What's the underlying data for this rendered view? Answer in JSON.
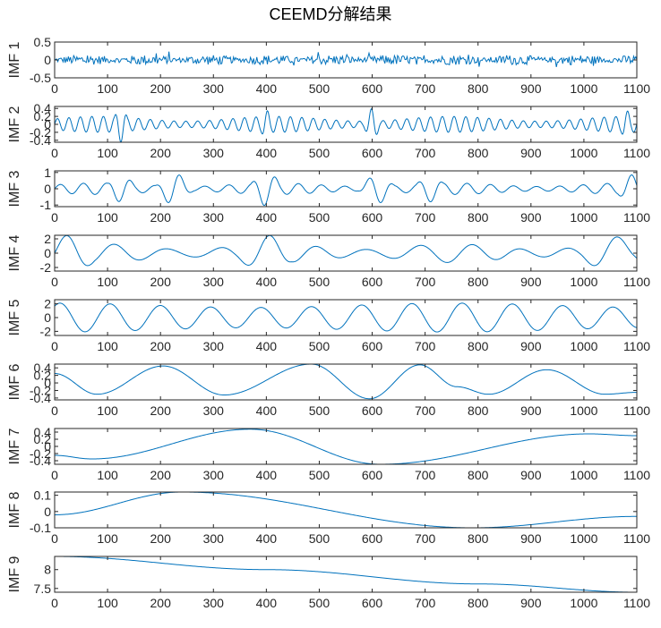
{
  "title": "CEEMD分解结果",
  "colors": {
    "line": "#0072BD",
    "axes": "#262626"
  },
  "chart_data": [
    {
      "type": "line",
      "ylabel": "IMF 1",
      "xlim": [
        0,
        1100
      ],
      "ylim": [
        -0.5,
        0.5
      ],
      "xticks": [
        "0",
        "100",
        "200",
        "300",
        "400",
        "500",
        "600",
        "700",
        "800",
        "900",
        "1000",
        "1100"
      ],
      "yticks": [
        {
          "v": 0.5,
          "label": "0.5"
        },
        {
          "v": 0,
          "label": "0"
        },
        {
          "v": -0.5,
          "label": "-0.5"
        }
      ],
      "series": [
        {
          "kind": "noise",
          "amplitude": 0.1,
          "sample_every": 2
        }
      ]
    },
    {
      "type": "line",
      "ylabel": "IMF 2",
      "xlim": [
        0,
        1100
      ],
      "ylim": [
        -0.45,
        0.45
      ],
      "xticks": [
        "0",
        "100",
        "200",
        "300",
        "400",
        "500",
        "600",
        "700",
        "800",
        "900",
        "1000",
        "1100"
      ],
      "yticks": [
        {
          "v": 0.4,
          "label": "0.4"
        },
        {
          "v": 0.2,
          "label": "0.2"
        },
        {
          "v": 0,
          "label": "0"
        },
        {
          "v": -0.2,
          "label": "-0.2"
        },
        {
          "v": -0.4,
          "label": "-0.4"
        }
      ],
      "series": [
        {
          "kind": "oscillation",
          "period": 22,
          "amplitude": 0.2,
          "bursts": [
            {
              "x": 125,
              "a": 0.45
            },
            {
              "x": 400,
              "a": 0.35
            },
            {
              "x": 600,
              "a": 0.4
            },
            {
              "x": 1080,
              "a": 0.35
            }
          ]
        }
      ]
    },
    {
      "type": "line",
      "ylabel": "IMF 3",
      "xlim": [
        0,
        1100
      ],
      "ylim": [
        -1.1,
        1.1
      ],
      "xticks": [
        "0",
        "100",
        "200",
        "300",
        "400",
        "500",
        "600",
        "700",
        "800",
        "900",
        "1000",
        "1100"
      ],
      "yticks": [
        {
          "v": 1,
          "label": "1"
        },
        {
          "v": 0,
          "label": "0"
        },
        {
          "v": -1,
          "label": "-1"
        }
      ],
      "series": [
        {
          "kind": "oscillation",
          "period": 45,
          "amplitude": 0.35,
          "bursts": [
            {
              "x": 125,
              "a": 0.8
            },
            {
              "x": 225,
              "a": 1.0
            },
            {
              "x": 400,
              "a": 1.05
            },
            {
              "x": 610,
              "a": 0.9
            },
            {
              "x": 710,
              "a": 0.8
            },
            {
              "x": 1090,
              "a": 0.85
            }
          ]
        }
      ]
    },
    {
      "type": "line",
      "ylabel": "IMF 4",
      "xlim": [
        0,
        1100
      ],
      "ylim": [
        -2.5,
        2.5
      ],
      "xticks": [
        "0",
        "100",
        "200",
        "300",
        "400",
        "500",
        "600",
        "700",
        "800",
        "900",
        "1000",
        "1100"
      ],
      "yticks": [
        {
          "v": 2,
          "label": "2"
        },
        {
          "v": 0,
          "label": "0"
        },
        {
          "v": -2,
          "label": "-2"
        }
      ],
      "series": [
        {
          "kind": "oscillation",
          "period": 95,
          "amplitude": 1.3,
          "bursts": [
            {
              "x": 30,
              "a": 2.5
            },
            {
              "x": 400,
              "a": 2.5
            },
            {
              "x": 1050,
              "a": 2.4
            }
          ]
        }
      ]
    },
    {
      "type": "line",
      "ylabel": "IMF 5",
      "xlim": [
        0,
        1100
      ],
      "ylim": [
        -2.6,
        2.6
      ],
      "xticks": [
        "0",
        "100",
        "200",
        "300",
        "400",
        "500",
        "600",
        "700",
        "800",
        "900",
        "1000",
        "1100"
      ],
      "yticks": [
        {
          "v": 2,
          "label": "2"
        },
        {
          "v": 0,
          "label": "0"
        },
        {
          "v": -2,
          "label": "-2"
        }
      ],
      "series": [
        {
          "kind": "sine",
          "period": 95,
          "amplitude": 2.1,
          "phase_x": 10
        }
      ]
    },
    {
      "type": "line",
      "ylabel": "IMF 6",
      "xlim": [
        0,
        1100
      ],
      "ylim": [
        -0.45,
        0.5
      ],
      "xticks": [
        "0",
        "100",
        "200",
        "300",
        "400",
        "500",
        "600",
        "700",
        "800",
        "900",
        "1000",
        "1100"
      ],
      "yticks": [
        {
          "v": 0.4,
          "label": "0.4"
        },
        {
          "v": 0.2,
          "label": "0.2"
        },
        {
          "v": 0,
          "label": "0"
        },
        {
          "v": -0.2,
          "label": "-0.2"
        },
        {
          "v": -0.4,
          "label": "-0.4"
        }
      ],
      "series": [
        {
          "kind": "points",
          "x": [
            0,
            80,
            205,
            320,
            485,
            595,
            690,
            760,
            820,
            930,
            1040,
            1100
          ],
          "y": [
            0.25,
            -0.3,
            0.45,
            -0.32,
            0.5,
            -0.42,
            0.48,
            -0.1,
            -0.3,
            0.35,
            -0.3,
            -0.25
          ]
        }
      ]
    },
    {
      "type": "line",
      "ylabel": "IMF 7",
      "xlim": [
        0,
        1100
      ],
      "ylim": [
        -0.5,
        0.5
      ],
      "xticks": [
        "0",
        "100",
        "200",
        "300",
        "400",
        "500",
        "600",
        "700",
        "800",
        "900",
        "1000",
        "1100"
      ],
      "yticks": [
        {
          "v": 0.4,
          "label": "0.4"
        },
        {
          "v": 0.2,
          "label": "0.2"
        },
        {
          "v": 0,
          "label": "0"
        },
        {
          "v": -0.2,
          "label": "-0.2"
        },
        {
          "v": -0.4,
          "label": "-0.4"
        }
      ],
      "series": [
        {
          "kind": "points",
          "x": [
            0,
            70,
            370,
            615,
            1010,
            1100
          ],
          "y": [
            -0.25,
            -0.35,
            0.48,
            -0.5,
            0.35,
            0.3
          ]
        }
      ]
    },
    {
      "type": "line",
      "ylabel": "IMF 8",
      "xlim": [
        0,
        1100
      ],
      "ylim": [
        -0.1,
        0.12
      ],
      "xticks": [
        "0",
        "100",
        "200",
        "300",
        "400",
        "500",
        "600",
        "700",
        "800",
        "900",
        "1000",
        "1100"
      ],
      "yticks": [
        {
          "v": 0.1,
          "label": "0.1"
        },
        {
          "v": 0,
          "label": "0"
        },
        {
          "v": -0.1,
          "label": "-0.1"
        }
      ],
      "series": [
        {
          "kind": "points",
          "x": [
            0,
            240,
            790,
            1100
          ],
          "y": [
            -0.02,
            0.12,
            -0.1,
            -0.03
          ]
        }
      ]
    },
    {
      "type": "line",
      "ylabel": "IMF 9",
      "xlim": [
        0,
        1100
      ],
      "ylim": [
        7.4,
        8.35
      ],
      "xticks": [
        "0",
        "100",
        "200",
        "300",
        "400",
        "500",
        "600",
        "700",
        "800",
        "900",
        "1000",
        "1100"
      ],
      "yticks": [
        {
          "v": 8,
          "label": "8"
        },
        {
          "v": 7.5,
          "label": "7.5"
        }
      ],
      "series": [
        {
          "kind": "points",
          "x": [
            0,
            400,
            800,
            1100
          ],
          "y": [
            8.35,
            8.0,
            7.62,
            7.4
          ]
        }
      ]
    }
  ]
}
